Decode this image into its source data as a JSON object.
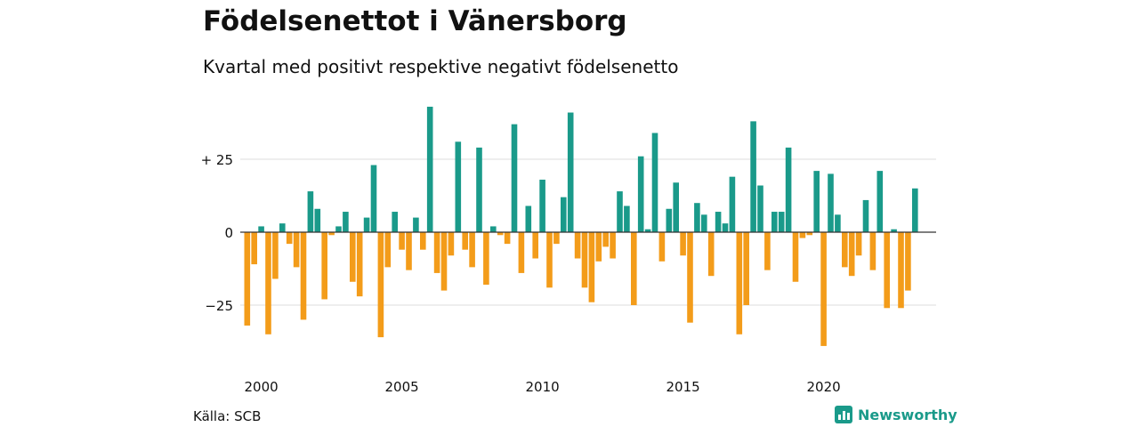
{
  "header": {
    "title": "Födelsenettot i Vänersborg",
    "subtitle": "Kvartal med positivt respektive negativt födelsenetto"
  },
  "footer": {
    "source": "Källa: SCB",
    "brand": "Newsworthy"
  },
  "colors": {
    "positive": "#1a9a8a",
    "negative": "#f39c1a",
    "grid": "#dddddd",
    "axis": "#333333"
  },
  "chart_data": {
    "type": "bar",
    "x_tick_labels": [
      "2000",
      "2005",
      "2010",
      "2015",
      "2020"
    ],
    "y_tick_labels": [
      "+ 25",
      "0",
      "−25"
    ],
    "y_ticks": [
      25,
      0,
      -25
    ],
    "ylim": [
      -46,
      46
    ],
    "start_quarter": "2000 Q1",
    "values": [
      -32,
      -11,
      2,
      -35,
      -16,
      3,
      -4,
      -12,
      -30,
      14,
      8,
      -23,
      -1,
      2,
      7,
      -17,
      -22,
      5,
      23,
      -36,
      -12,
      7,
      -6,
      -13,
      5,
      -6,
      43,
      -14,
      -20,
      -8,
      31,
      -6,
      -12,
      29,
      -18,
      2,
      -1,
      -4,
      37,
      -14,
      9,
      -9,
      18,
      -19,
      -4,
      12,
      41,
      -9,
      -19,
      -24,
      -10,
      -5,
      -9,
      14,
      9,
      -25,
      26,
      1,
      34,
      -10,
      8,
      17,
      -8,
      -31,
      10,
      6,
      -15,
      7,
      3,
      19,
      -35,
      -25,
      38,
      16,
      -13,
      7,
      7,
      29,
      -17,
      -2,
      -1,
      21,
      -39,
      20,
      6,
      -12,
      -15,
      -8,
      11,
      -13,
      21,
      -26,
      1,
      -26,
      -20,
      15
    ]
  }
}
